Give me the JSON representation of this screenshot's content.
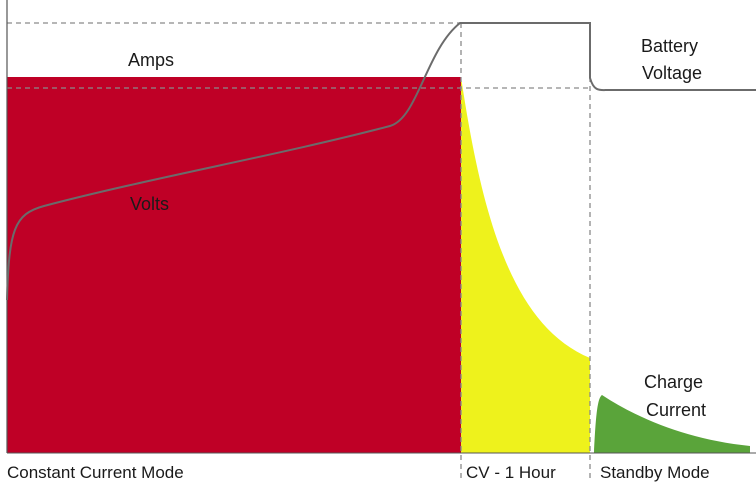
{
  "labels": {
    "amps": "Amps",
    "volts": "Volts",
    "battery_voltage": [
      "Battery",
      "Voltage"
    ],
    "charge_current": [
      "Charge",
      "Current"
    ]
  },
  "modes": {
    "constant_current": "Constant Current Mode",
    "cv": "CV - 1 Hour",
    "standby": "Standby Mode"
  },
  "colors": {
    "constant_current_fill": "#bf0026",
    "cv_fill": "#eef21c",
    "standby_fill": "#5aa43a",
    "voltage_line": "#6b6b6b",
    "guide_line": "#8a8a8a"
  }
}
